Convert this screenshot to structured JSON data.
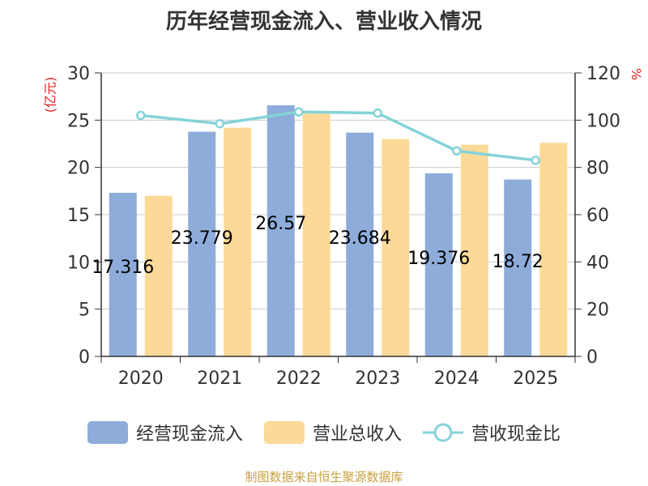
{
  "chart_data": {
    "type": "bar",
    "title": "历年经营现金流入、营业收入情况",
    "ylabel_left": "(亿元)",
    "ylabel_right": "%",
    "categories": [
      "2020",
      "2021",
      "2022",
      "2023",
      "2024",
      "2025"
    ],
    "series": [
      {
        "name": "经营现金流入",
        "type": "bar",
        "axis": "left",
        "values": [
          17.316,
          23.779,
          26.57,
          23.684,
          19.376,
          18.72
        ],
        "labels": [
          "17.316",
          "23.779",
          "26.57",
          "23.684",
          "19.376",
          "18.72"
        ]
      },
      {
        "name": "营业总收入",
        "type": "bar",
        "axis": "left",
        "values": [
          17.0,
          24.2,
          25.7,
          23.0,
          22.4,
          22.6
        ]
      },
      {
        "name": "营收现金比",
        "type": "line",
        "axis": "right",
        "values": [
          102,
          98.5,
          103.5,
          103,
          87,
          83
        ]
      }
    ],
    "ylim_left": [
      0,
      30
    ],
    "yticks_left": [
      "0",
      "5",
      "10",
      "15",
      "20",
      "25",
      "30"
    ],
    "ylim_right": [
      0,
      120
    ],
    "yticks_right": [
      "0",
      "20",
      "40",
      "60",
      "80",
      "100",
      "120"
    ],
    "grid": true,
    "legend_position": "bottom",
    "colors": {
      "bar1": "#8eacda",
      "bar2": "#fdd998",
      "line": "#85d3d8"
    },
    "source": "制图数据来自恒生聚源数据库"
  }
}
